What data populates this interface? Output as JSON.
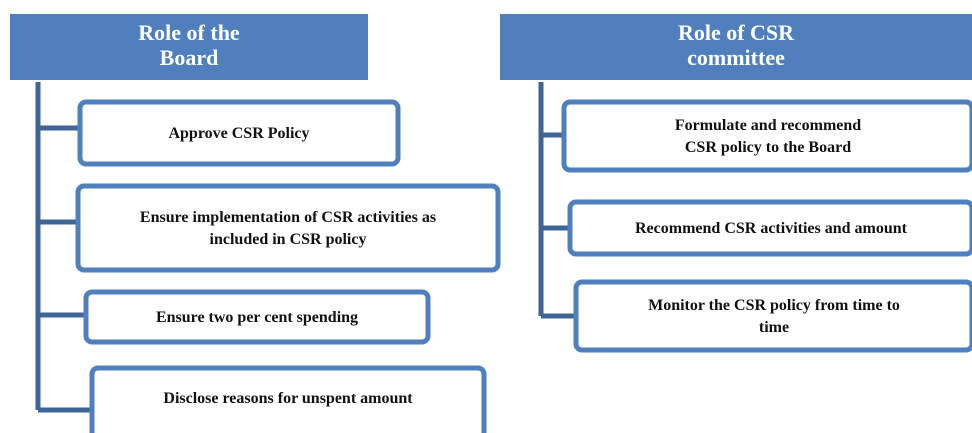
{
  "columns": [
    {
      "title": [
        "Role of the",
        "Board"
      ],
      "items": [
        [
          "Approve CSR Policy"
        ],
        [
          "Ensure implementation of CSR activities as",
          "included in CSR policy"
        ],
        [
          "Ensure two per cent spending"
        ],
        [
          "Disclose reasons for unspent amount"
        ]
      ]
    },
    {
      "title": [
        "Role of CSR",
        "committee"
      ],
      "items": [
        [
          "Formulate and recommend",
          "CSR policy to the Board"
        ],
        [
          "Recommend CSR activities and amount"
        ],
        [
          "Monitor the CSR policy from time to",
          "time"
        ]
      ]
    }
  ]
}
